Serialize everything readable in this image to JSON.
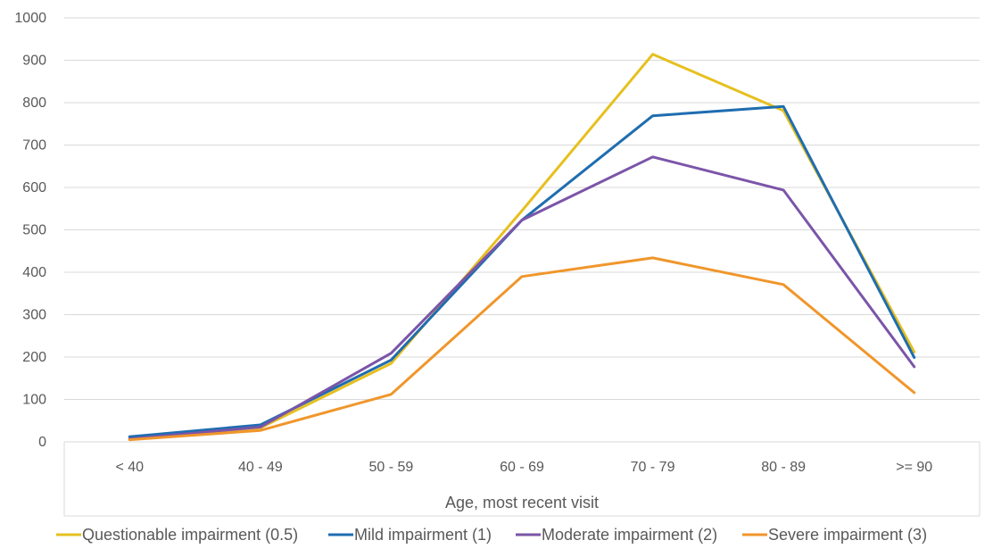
{
  "chart_data": {
    "type": "line",
    "categories": [
      "< 40",
      "40 - 49",
      "50 - 59",
      "60 - 69",
      "70 - 79",
      "80 - 89",
      ">= 90"
    ],
    "xlabel": "Age, most recent visit",
    "ylabel": "",
    "ylim": [
      0,
      1000
    ],
    "yticks": [
      0,
      100,
      200,
      300,
      400,
      500,
      600,
      700,
      800,
      900,
      1000
    ],
    "grid": "horizontal",
    "legend_position": "bottom",
    "series": [
      {
        "name": "Questionable impairment (0.5)",
        "color": "#E6C01F",
        "values": [
          8,
          33,
          185,
          545,
          914,
          781,
          212
        ]
      },
      {
        "name": "Mild impairment (1)",
        "color": "#1F6DB0",
        "values": [
          12,
          40,
          193,
          523,
          769,
          791,
          199
        ]
      },
      {
        "name": "Moderate impairment (2)",
        "color": "#7B55A8",
        "values": [
          7,
          35,
          209,
          523,
          672,
          594,
          177
        ]
      },
      {
        "name": "Severe impairment (3)",
        "color": "#F0962B",
        "values": [
          5,
          27,
          112,
          390,
          434,
          371,
          116
        ]
      }
    ]
  }
}
